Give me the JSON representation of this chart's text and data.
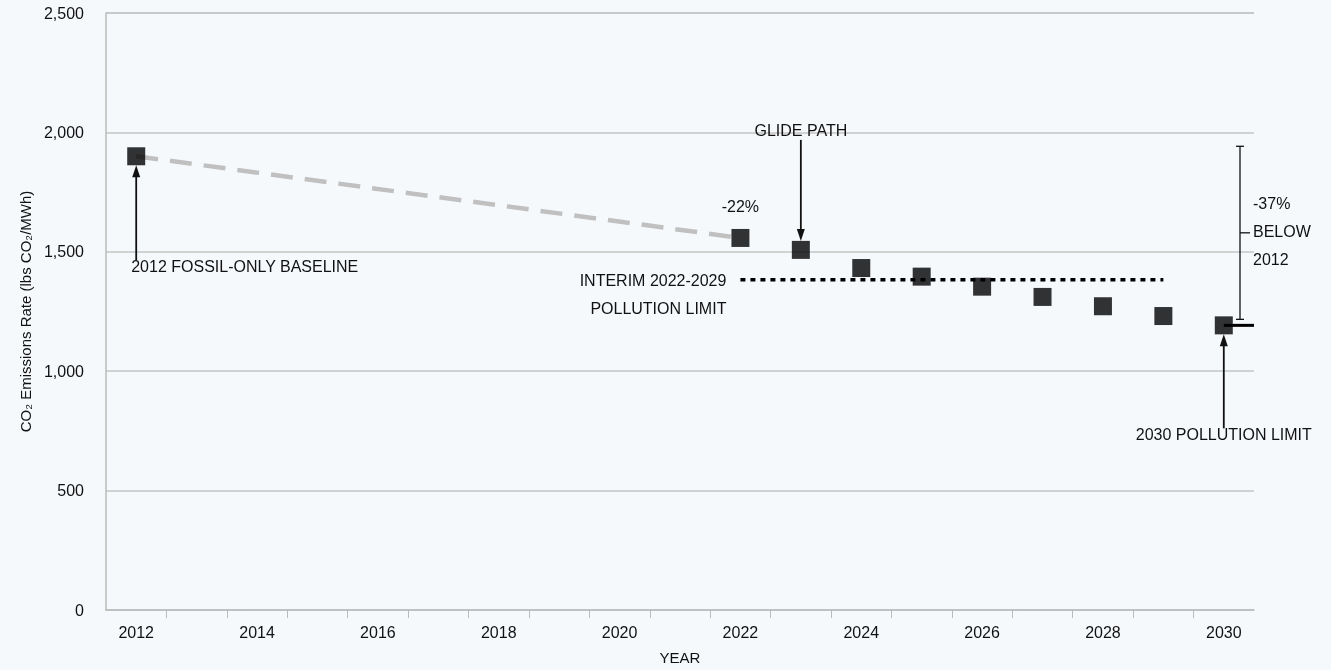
{
  "chart_data": {
    "type": "scatter",
    "xlabel": "YEAR",
    "ylabel": "CO₂ Emissions Rate (lbs CO₂/MWh)",
    "xlim": [
      2011.5,
      2030.5
    ],
    "xticks": [
      {
        "value": 2012,
        "label": "2012"
      },
      {
        "value": 2014,
        "label": "2014"
      },
      {
        "value": 2016,
        "label": "2016"
      },
      {
        "value": 2018,
        "label": "2018"
      },
      {
        "value": 2020,
        "label": "2020"
      },
      {
        "value": 2022,
        "label": "2022"
      },
      {
        "value": 2024,
        "label": "2024"
      },
      {
        "value": 2026,
        "label": "2026"
      },
      {
        "value": 2028,
        "label": "2028"
      },
      {
        "value": 2030,
        "label": "2030"
      },
      {
        "value": 2012.5,
        "label": null
      },
      {
        "value": 2013.5,
        "label": null
      },
      {
        "value": 2014.5,
        "label": null
      },
      {
        "value": 2015.5,
        "label": null
      },
      {
        "value": 2016.5,
        "label": null
      },
      {
        "value": 2017.5,
        "label": null
      },
      {
        "value": 2018.5,
        "label": null
      },
      {
        "value": 2019.5,
        "label": null
      },
      {
        "value": 2020.5,
        "label": null
      },
      {
        "value": 2021.5,
        "label": null
      },
      {
        "value": 2022.5,
        "label": null
      },
      {
        "value": 2023.5,
        "label": null
      },
      {
        "value": 2024.5,
        "label": null
      },
      {
        "value": 2025.5,
        "label": null
      },
      {
        "value": 2026.5,
        "label": null
      },
      {
        "value": 2027.5,
        "label": null
      },
      {
        "value": 2028.5,
        "label": null
      },
      {
        "value": 2029.5,
        "label": null
      }
    ],
    "ylim": [
      0,
      2500
    ],
    "yticks": [
      {
        "value": 0,
        "label": "0"
      },
      {
        "value": 500,
        "label": "500"
      },
      {
        "value": 1000,
        "label": "1,000"
      },
      {
        "value": 1500,
        "label": "1,500"
      },
      {
        "value": 2000,
        "label": "2,000"
      },
      {
        "value": 2500,
        "label": "2,500"
      }
    ],
    "grid": "y",
    "series": [
      {
        "type": "line",
        "color": "#c0c0c0",
        "line_style": "dashed",
        "marker": "none",
        "x": [
          2012,
          2022
        ],
        "values": [
          1900,
          1558
        ]
      },
      {
        "type": "line",
        "color": "#000000",
        "line_style": "dotted",
        "marker": "none",
        "x": [
          2022,
          2029
        ],
        "values": [
          1383,
          1383
        ]
      },
      {
        "type": "line",
        "color": "#000000",
        "line_style": "solid",
        "marker": "none",
        "x": [
          2030,
          2030.5
        ],
        "values": [
          1192,
          1192
        ]
      },
      {
        "type": "scatter",
        "color": "#000000",
        "marker": "square",
        "x": [
          2012,
          2022,
          2023,
          2024,
          2025,
          2026,
          2027,
          2028,
          2029,
          2030
        ],
        "values": [
          1900,
          1558,
          1508,
          1432,
          1396,
          1354,
          1311,
          1272,
          1231,
          1192
        ]
      }
    ],
    "annotations": [
      "2012 FOSSIL-ONLY BASELINE",
      "-22%",
      "GLIDE PATH",
      "INTERIM 2022-2029\nPOLLUTION LIMIT",
      "2030 POLLUTION LIMIT",
      "-37%\nBELOW\n2012"
    ]
  }
}
